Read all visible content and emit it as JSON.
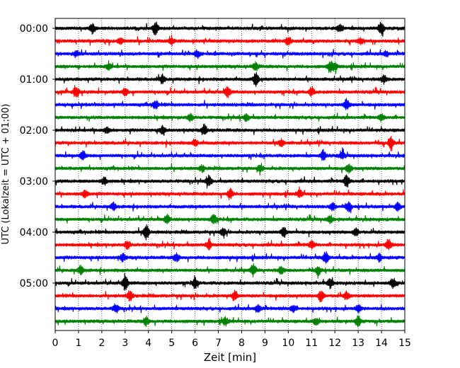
{
  "chart_data": {
    "type": "line",
    "subtype": "helicorder",
    "xlabel": "Zeit  [min]",
    "ylabel": "UTC (Lokalzeit = UTC + 01:00)",
    "xlim": [
      0,
      15
    ],
    "x_ticks": [
      "0",
      "1",
      "2",
      "3",
      "4",
      "5",
      "6",
      "7",
      "8",
      "9",
      "10",
      "11",
      "12",
      "13",
      "14",
      "15"
    ],
    "y_tick_labels": [
      "00:00",
      "01:00",
      "02:00",
      "03:00",
      "04:00",
      "05:00"
    ],
    "y_tick_rows": [
      0,
      4,
      8,
      12,
      16,
      20
    ],
    "row_interval_minutes": 15,
    "rows": 24,
    "color_cycle": [
      "#000000",
      "#ff0000",
      "#0000ff",
      "#008000"
    ],
    "vertical_grid": "dotted",
    "burst_events": [
      [
        [
          4.3,
          9
        ],
        [
          14.0,
          9
        ],
        [
          1.6,
          6
        ],
        [
          12.2,
          6
        ]
      ],
      [
        [
          5.0,
          5
        ],
        [
          10.0,
          6
        ],
        [
          2.8,
          4
        ],
        [
          13.1,
          4
        ]
      ],
      [
        [
          6.1,
          5
        ],
        [
          0.9,
          4
        ],
        [
          14.2,
          4
        ]
      ],
      [
        [
          8.6,
          6
        ],
        [
          2.3,
          4
        ],
        [
          11.8,
          7
        ],
        [
          12.0,
          5
        ]
      ],
      [
        [
          4.6,
          6
        ],
        [
          8.6,
          9
        ],
        [
          14.1,
          5
        ]
      ],
      [
        [
          0.9,
          8
        ],
        [
          3.0,
          5
        ],
        [
          7.4,
          7
        ],
        [
          11.0,
          6
        ]
      ],
      [
        [
          4.3,
          6
        ],
        [
          12.5,
          8
        ]
      ],
      [
        [
          5.8,
          5
        ],
        [
          8.2,
          6
        ],
        [
          14.0,
          4
        ]
      ],
      [
        [
          6.4,
          7
        ],
        [
          4.6,
          5
        ],
        [
          2.2,
          4
        ]
      ],
      [
        [
          14.4,
          9
        ],
        [
          9.7,
          5
        ],
        [
          6.0,
          5
        ]
      ],
      [
        [
          1.2,
          6
        ],
        [
          11.5,
          7
        ],
        [
          12.3,
          5
        ]
      ],
      [
        [
          8.8,
          5
        ],
        [
          12.6,
          6
        ],
        [
          6.3,
          4
        ]
      ],
      [
        [
          6.6,
          8
        ],
        [
          12.5,
          8
        ],
        [
          2.1,
          5
        ]
      ],
      [
        [
          1.3,
          6
        ],
        [
          7.5,
          7
        ],
        [
          10.5,
          5
        ]
      ],
      [
        [
          2.5,
          5
        ],
        [
          11.9,
          6
        ],
        [
          12.6,
          6
        ],
        [
          14.7,
          5
        ]
      ],
      [
        [
          4.8,
          6
        ],
        [
          6.8,
          7
        ],
        [
          11.8,
          5
        ]
      ],
      [
        [
          3.9,
          10
        ],
        [
          7.2,
          6
        ],
        [
          9.8,
          7
        ],
        [
          12.9,
          5
        ]
      ],
      [
        [
          3.1,
          6
        ],
        [
          14.3,
          8
        ],
        [
          11.0,
          5
        ],
        [
          6.6,
          6
        ]
      ],
      [
        [
          5.2,
          6
        ],
        [
          11.6,
          8
        ],
        [
          13.9,
          5
        ],
        [
          2.9,
          5
        ]
      ],
      [
        [
          1.1,
          6
        ],
        [
          8.5,
          7
        ],
        [
          11.3,
          6
        ],
        [
          9.7,
          5
        ]
      ],
      [
        [
          3.0,
          10
        ],
        [
          6.0,
          7
        ],
        [
          11.8,
          6
        ],
        [
          14.5,
          6
        ]
      ],
      [
        [
          3.2,
          7
        ],
        [
          7.7,
          7
        ],
        [
          11.4,
          8
        ],
        [
          12.5,
          5
        ]
      ],
      [
        [
          2.6,
          6
        ],
        [
          8.7,
          6
        ],
        [
          10.2,
          5
        ],
        [
          13.0,
          5
        ]
      ],
      [
        [
          3.9,
          6
        ],
        [
          7.3,
          5
        ],
        [
          11.2,
          5
        ],
        [
          13.0,
          7
        ]
      ]
    ]
  }
}
